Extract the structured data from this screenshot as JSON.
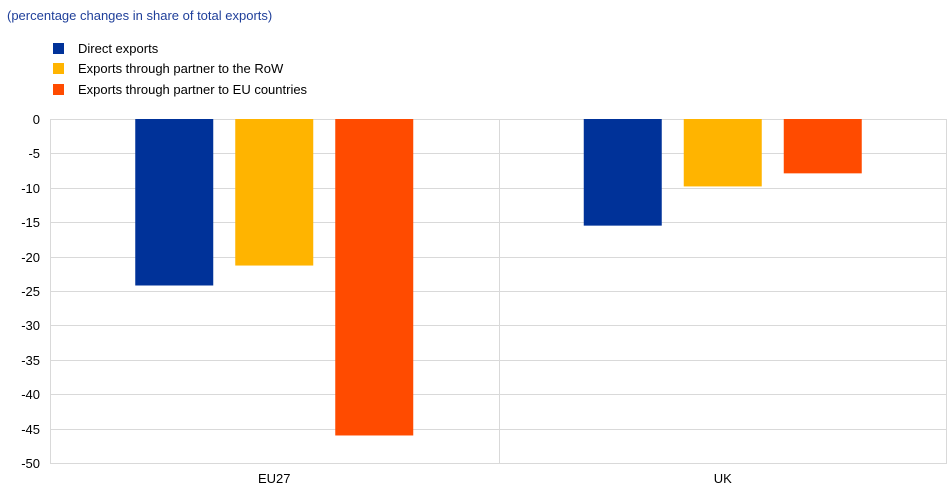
{
  "chart_data": {
    "type": "bar",
    "subtitle": "(percentage changes in share of total exports)",
    "categories": [
      "EU27",
      "UK"
    ],
    "series": [
      {
        "name": "Direct exports",
        "color": "#003299",
        "values": [
          -24.2,
          -15.5
        ]
      },
      {
        "name": "Exports through partner to the RoW",
        "color": "#ffb400",
        "values": [
          -21.3,
          -9.8
        ]
      },
      {
        "name": "Exports through partner to EU countries",
        "color": "#ff4b00",
        "values": [
          -46.0,
          -7.9
        ]
      }
    ],
    "ylim": [
      -50,
      0
    ],
    "yticks": [
      "0",
      "-5",
      "-10",
      "-15",
      "-20",
      "-25",
      "-30",
      "-35",
      "-40",
      "-45",
      "-50"
    ],
    "grid": true,
    "legend_position": "top-left"
  }
}
